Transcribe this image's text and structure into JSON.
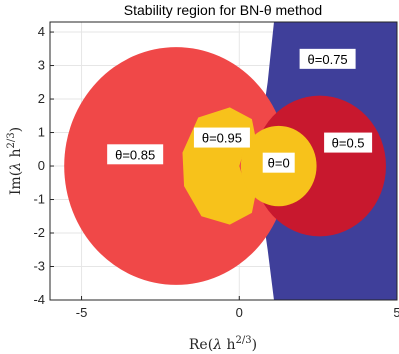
{
  "chart_data": {
    "type": "area",
    "title": "Stability region for BN-θ method",
    "xlabel": "Re(λ h^2/3)",
    "ylabel": "Im(λ h^2/3)",
    "xlim": [
      -6,
      5
    ],
    "ylim": [
      -4,
      4.3
    ],
    "xticks": [
      -5,
      0,
      5
    ],
    "yticks": [
      -4,
      -3,
      -2,
      -1,
      0,
      1,
      2,
      3,
      4
    ],
    "grid": true,
    "colors": {
      "theta_0.75": "#3f3f9a",
      "theta_0.85": "#f04848",
      "theta_0.95": "#f7c21b",
      "theta_0.5": "#c8182e",
      "theta_0": "#f7c21b"
    },
    "series": [
      {
        "name": "θ=0.75",
        "label": "θ=0.75",
        "region": "right of boundary curve, x ≈ 1.1 at Im=±4 to x ≈ 0.55 at Im=0",
        "label_at": [
          2.8,
          3.2
        ]
      },
      {
        "name": "θ=0.85",
        "label": "θ=0.85",
        "region": "disk center (-2, 0), radius 3.55",
        "label_at": [
          -3.3,
          0.35
        ]
      },
      {
        "name": "θ=0.95",
        "label": "θ=0.95",
        "region": "disk center (-0.3, 0), radius 1.75",
        "label_at": [
          -0.55,
          0.85
        ]
      },
      {
        "name": "θ=0.5",
        "label": "θ=0.5",
        "region": "disk center (2.55, 0), radius 2.1",
        "label_at": [
          3.45,
          0.7
        ]
      },
      {
        "name": "θ=0",
        "label": "θ=0",
        "region": "disk center (1.25, 0), radius 1.2",
        "label_at": [
          1.25,
          0.1
        ]
      }
    ]
  }
}
